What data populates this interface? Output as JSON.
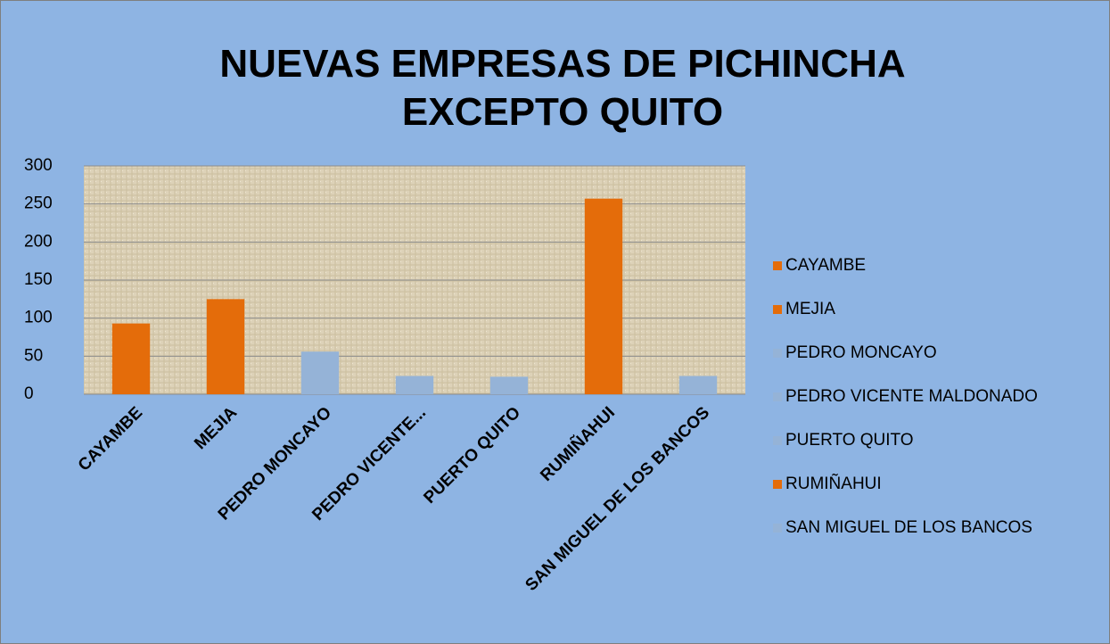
{
  "chart_data": {
    "type": "bar",
    "title": "NUEVAS EMPRESAS DE PICHINCHA EXCEPTO QUITO",
    "categories": [
      "CAYAMBE",
      "MEJIA",
      "PEDRO MONCAYO",
      "PEDRO VICENTE MALDONADO",
      "PUERTO QUITO",
      "RUMIÑAHUI",
      "SAN MIGUEL DE LOS BANCOS"
    ],
    "category_labels": [
      "CAYAMBE",
      "MEJIA",
      "PEDRO MONCAYO",
      "PEDRO VICENTE...",
      "PUERTO QUITO",
      "RUMIÑAHUI",
      "SAN MIGUEL DE LOS BANCOS"
    ],
    "values": [
      93,
      125,
      56,
      24,
      23,
      257,
      24
    ],
    "colors": [
      "#e46c0a",
      "#e46c0a",
      "#95b3d7",
      "#95b3d7",
      "#95b3d7",
      "#e46c0a",
      "#95b3d7"
    ],
    "ylim": [
      0,
      300
    ],
    "yticks": [
      0,
      50,
      100,
      150,
      200,
      250,
      300
    ],
    "grid": true,
    "legend": "right"
  }
}
